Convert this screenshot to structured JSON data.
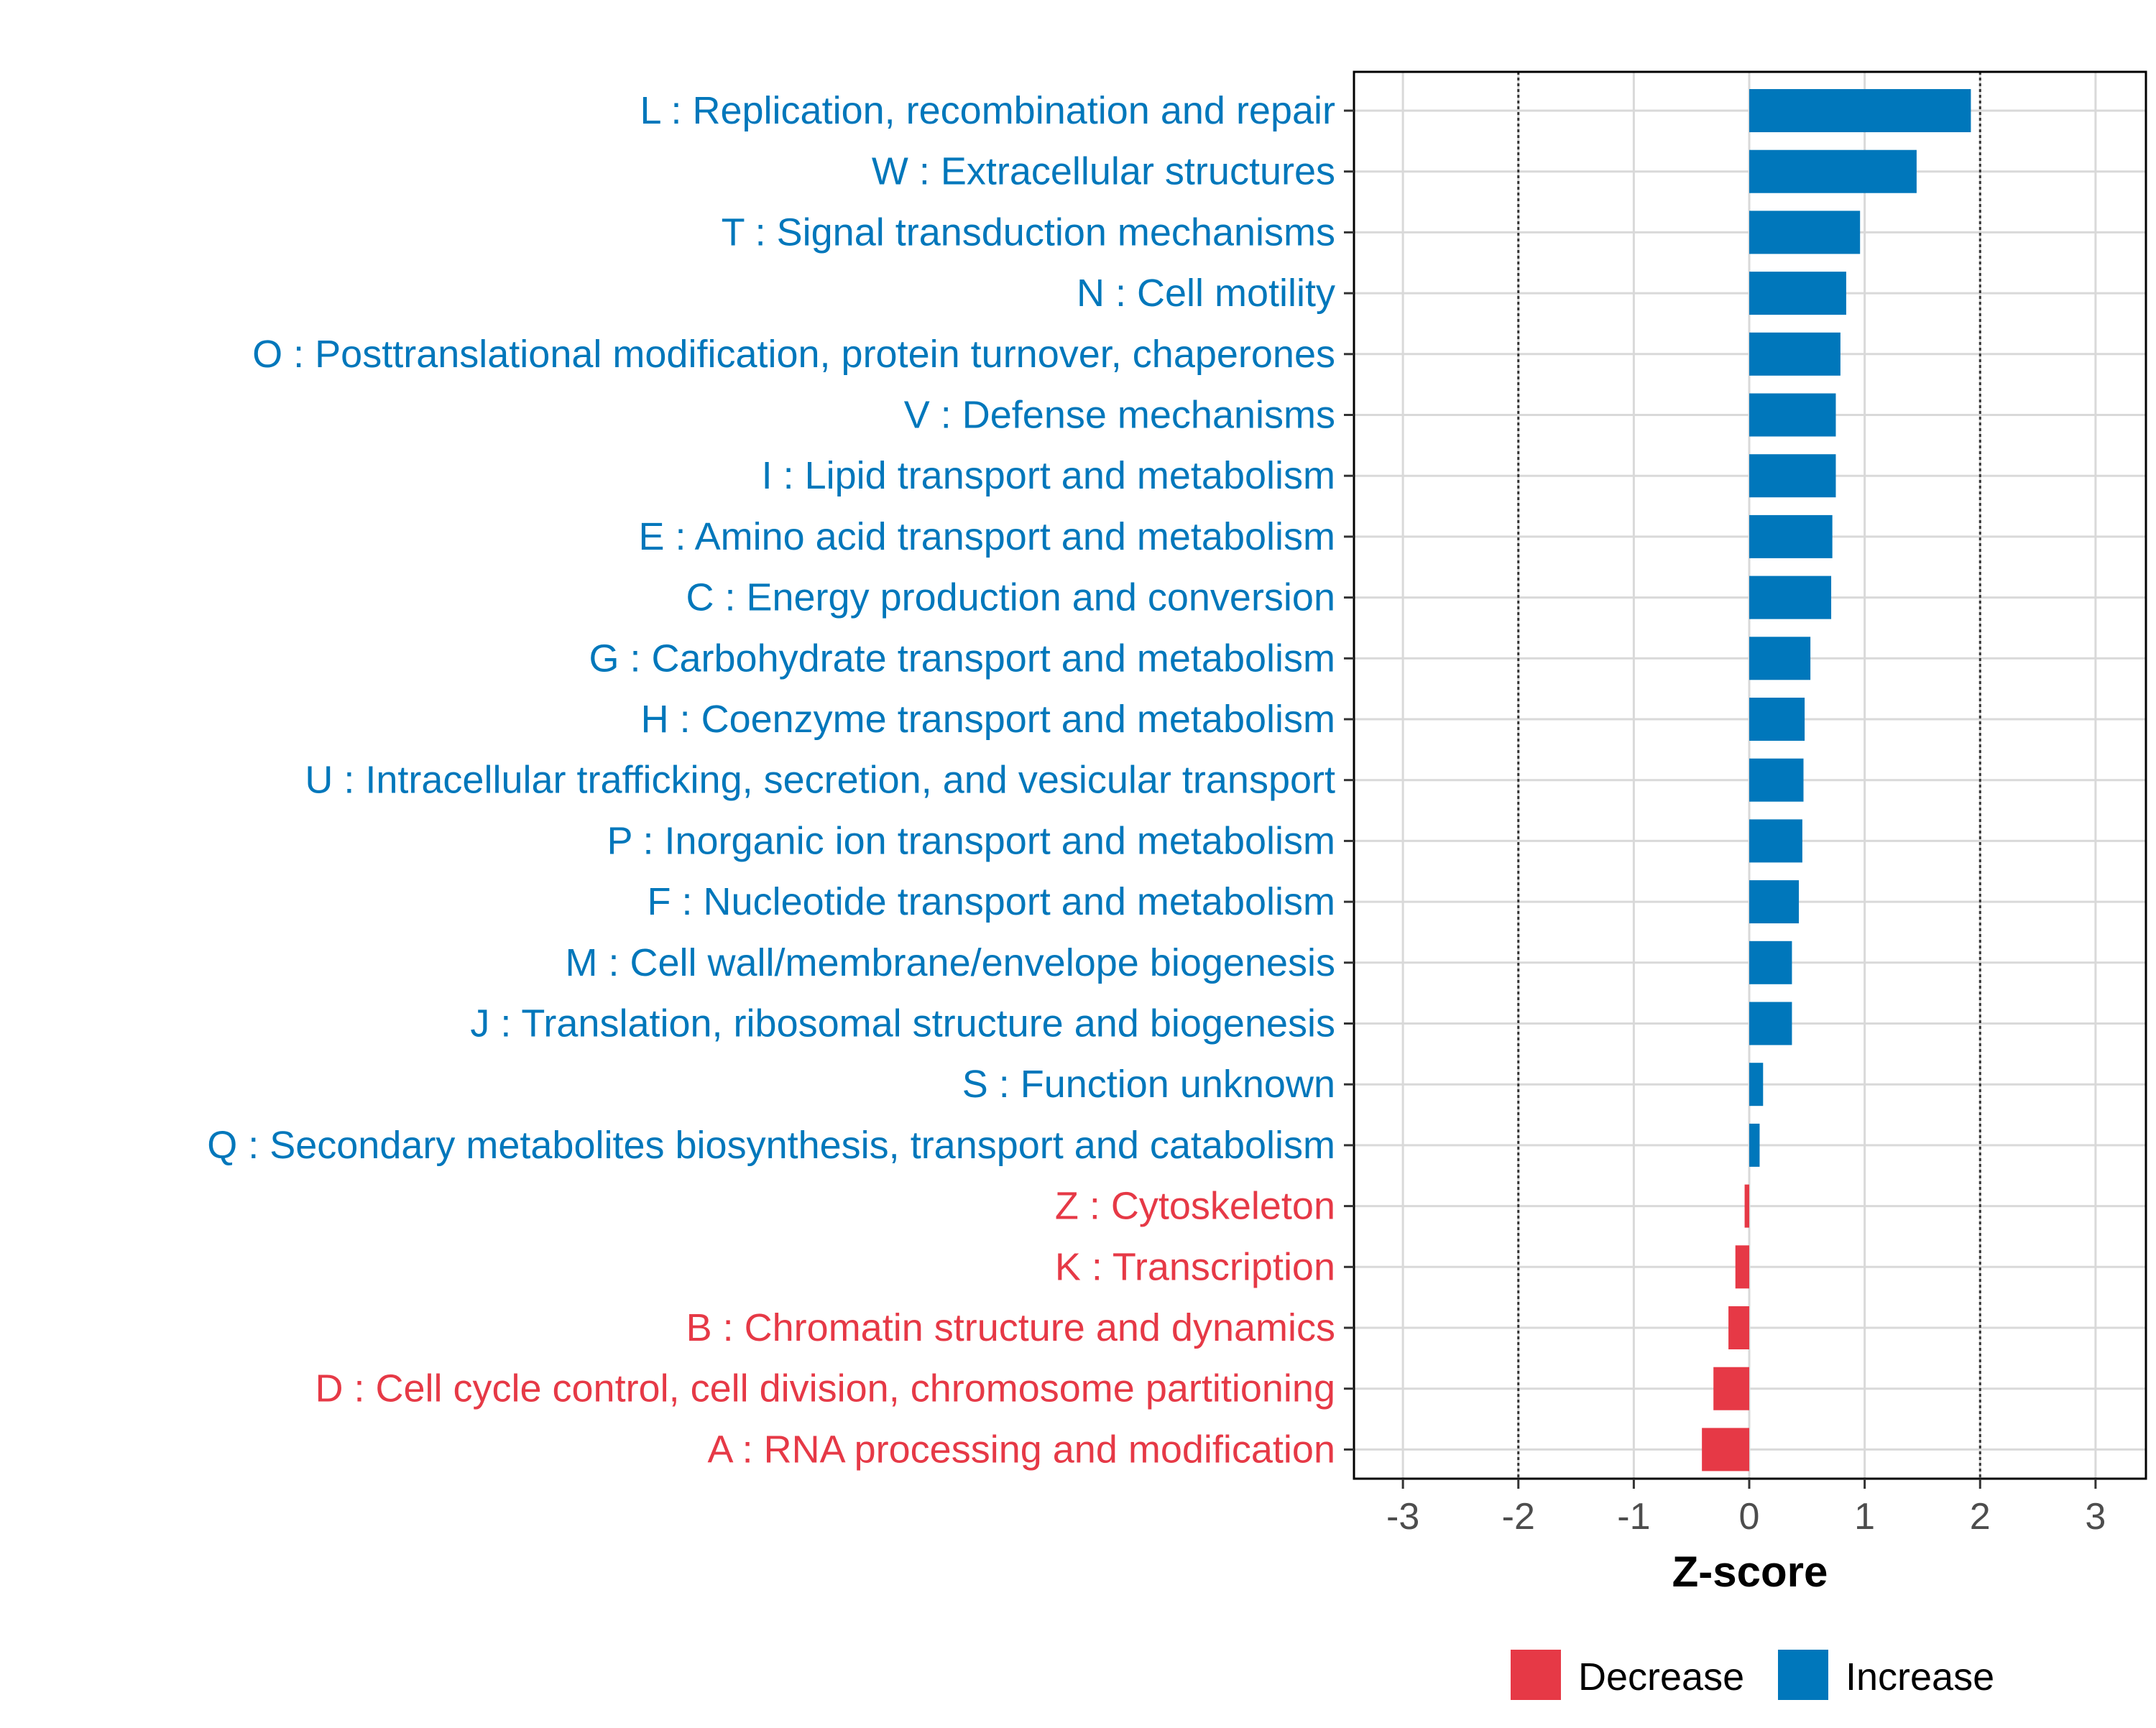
{
  "chart_data": {
    "type": "bar",
    "orientation": "horizontal",
    "title": "",
    "xlabel": "Z-score",
    "ylabel": "",
    "xlim": [
      -3.2,
      3.2
    ],
    "xticks": [
      -3,
      -2,
      -1,
      0,
      1,
      2,
      3
    ],
    "reference_lines": [
      -2,
      2
    ],
    "grid": true,
    "legend_position": "bottom",
    "colors": {
      "Increase": "#0077BB",
      "Decrease": "#E63946"
    },
    "legend": [
      {
        "label": "Decrease",
        "color": "#E63946"
      },
      {
        "label": "Increase",
        "color": "#0077BB"
      }
    ],
    "categories": [
      "L : Replication, recombination and repair",
      "W : Extracellular structures",
      "T : Signal transduction mechanisms",
      "N : Cell motility",
      "O : Posttranslational modification, protein turnover, chaperones",
      "V : Defense mechanisms",
      "I : Lipid transport and metabolism",
      "E : Amino acid transport and metabolism",
      "C : Energy production and conversion",
      "G : Carbohydrate transport and metabolism",
      "H : Coenzyme transport and metabolism",
      "U : Intracellular trafficking, secretion, and vesicular transport",
      "P : Inorganic ion transport and metabolism",
      "F : Nucleotide transport and metabolism",
      "M : Cell wall/membrane/envelope biogenesis",
      "J : Translation, ribosomal structure and biogenesis",
      "S : Function unknown",
      "Q : Secondary metabolites biosynthesis, transport and catabolism",
      "Z : Cytoskeleton",
      "K : Transcription",
      "B : Chromatin structure and dynamics",
      "D : Cell cycle control, cell division, chromosome partitioning",
      "A : RNA processing and modification"
    ],
    "values": [
      1.92,
      1.45,
      0.96,
      0.84,
      0.79,
      0.75,
      0.75,
      0.72,
      0.71,
      0.53,
      0.48,
      0.47,
      0.46,
      0.43,
      0.37,
      0.37,
      0.12,
      0.09,
      -0.04,
      -0.12,
      -0.18,
      -0.31,
      -0.41
    ],
    "groups": [
      "Increase",
      "Increase",
      "Increase",
      "Increase",
      "Increase",
      "Increase",
      "Increase",
      "Increase",
      "Increase",
      "Increase",
      "Increase",
      "Increase",
      "Increase",
      "Increase",
      "Increase",
      "Increase",
      "Increase",
      "Increase",
      "Decrease",
      "Decrease",
      "Decrease",
      "Decrease",
      "Decrease"
    ]
  }
}
